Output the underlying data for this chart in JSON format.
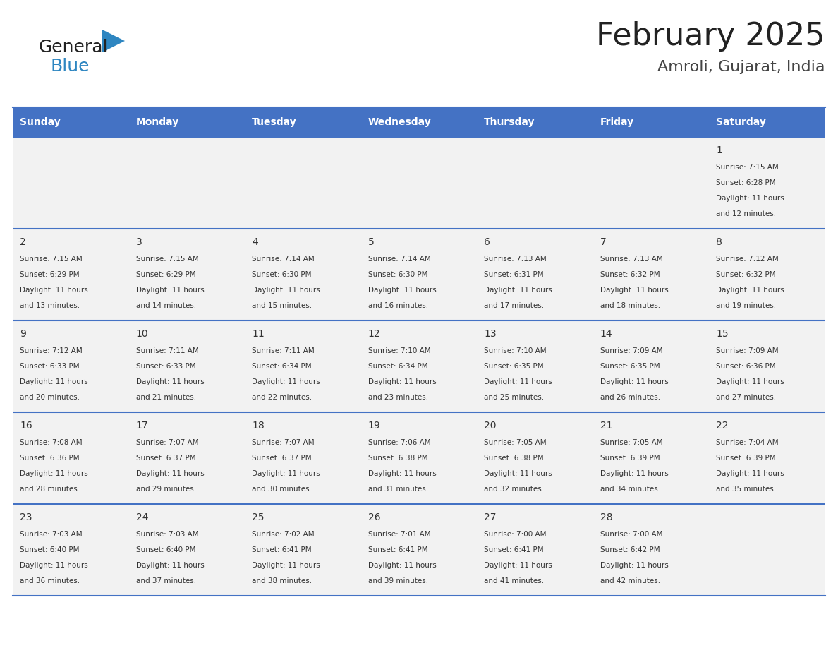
{
  "title": "February 2025",
  "subtitle": "Amroli, Gujarat, India",
  "days_of_week": [
    "Sunday",
    "Monday",
    "Tuesday",
    "Wednesday",
    "Thursday",
    "Friday",
    "Saturday"
  ],
  "header_bg": "#4472C4",
  "header_text": "#FFFFFF",
  "row_bg_light": "#F2F2F2",
  "row_bg_white": "#FFFFFF",
  "cell_text_color": "#333333",
  "day_num_color": "#333333",
  "border_color": "#4472C4",
  "calendar_data": [
    [
      null,
      null,
      null,
      null,
      null,
      null,
      {
        "day": 1,
        "sunrise": "7:15 AM",
        "sunset": "6:28 PM",
        "daylight": "11 hours and 12 minutes."
      }
    ],
    [
      {
        "day": 2,
        "sunrise": "7:15 AM",
        "sunset": "6:29 PM",
        "daylight": "11 hours and 13 minutes."
      },
      {
        "day": 3,
        "sunrise": "7:15 AM",
        "sunset": "6:29 PM",
        "daylight": "11 hours and 14 minutes."
      },
      {
        "day": 4,
        "sunrise": "7:14 AM",
        "sunset": "6:30 PM",
        "daylight": "11 hours and 15 minutes."
      },
      {
        "day": 5,
        "sunrise": "7:14 AM",
        "sunset": "6:30 PM",
        "daylight": "11 hours and 16 minutes."
      },
      {
        "day": 6,
        "sunrise": "7:13 AM",
        "sunset": "6:31 PM",
        "daylight": "11 hours and 17 minutes."
      },
      {
        "day": 7,
        "sunrise": "7:13 AM",
        "sunset": "6:32 PM",
        "daylight": "11 hours and 18 minutes."
      },
      {
        "day": 8,
        "sunrise": "7:12 AM",
        "sunset": "6:32 PM",
        "daylight": "11 hours and 19 minutes."
      }
    ],
    [
      {
        "day": 9,
        "sunrise": "7:12 AM",
        "sunset": "6:33 PM",
        "daylight": "11 hours and 20 minutes."
      },
      {
        "day": 10,
        "sunrise": "7:11 AM",
        "sunset": "6:33 PM",
        "daylight": "11 hours and 21 minutes."
      },
      {
        "day": 11,
        "sunrise": "7:11 AM",
        "sunset": "6:34 PM",
        "daylight": "11 hours and 22 minutes."
      },
      {
        "day": 12,
        "sunrise": "7:10 AM",
        "sunset": "6:34 PM",
        "daylight": "11 hours and 23 minutes."
      },
      {
        "day": 13,
        "sunrise": "7:10 AM",
        "sunset": "6:35 PM",
        "daylight": "11 hours and 25 minutes."
      },
      {
        "day": 14,
        "sunrise": "7:09 AM",
        "sunset": "6:35 PM",
        "daylight": "11 hours and 26 minutes."
      },
      {
        "day": 15,
        "sunrise": "7:09 AM",
        "sunset": "6:36 PM",
        "daylight": "11 hours and 27 minutes."
      }
    ],
    [
      {
        "day": 16,
        "sunrise": "7:08 AM",
        "sunset": "6:36 PM",
        "daylight": "11 hours and 28 minutes."
      },
      {
        "day": 17,
        "sunrise": "7:07 AM",
        "sunset": "6:37 PM",
        "daylight": "11 hours and 29 minutes."
      },
      {
        "day": 18,
        "sunrise": "7:07 AM",
        "sunset": "6:37 PM",
        "daylight": "11 hours and 30 minutes."
      },
      {
        "day": 19,
        "sunrise": "7:06 AM",
        "sunset": "6:38 PM",
        "daylight": "11 hours and 31 minutes."
      },
      {
        "day": 20,
        "sunrise": "7:05 AM",
        "sunset": "6:38 PM",
        "daylight": "11 hours and 32 minutes."
      },
      {
        "day": 21,
        "sunrise": "7:05 AM",
        "sunset": "6:39 PM",
        "daylight": "11 hours and 34 minutes."
      },
      {
        "day": 22,
        "sunrise": "7:04 AM",
        "sunset": "6:39 PM",
        "daylight": "11 hours and 35 minutes."
      }
    ],
    [
      {
        "day": 23,
        "sunrise": "7:03 AM",
        "sunset": "6:40 PM",
        "daylight": "11 hours and 36 minutes."
      },
      {
        "day": 24,
        "sunrise": "7:03 AM",
        "sunset": "6:40 PM",
        "daylight": "11 hours and 37 minutes."
      },
      {
        "day": 25,
        "sunrise": "7:02 AM",
        "sunset": "6:41 PM",
        "daylight": "11 hours and 38 minutes."
      },
      {
        "day": 26,
        "sunrise": "7:01 AM",
        "sunset": "6:41 PM",
        "daylight": "11 hours and 39 minutes."
      },
      {
        "day": 27,
        "sunrise": "7:00 AM",
        "sunset": "6:41 PM",
        "daylight": "11 hours and 41 minutes."
      },
      {
        "day": 28,
        "sunrise": "7:00 AM",
        "sunset": "6:42 PM",
        "daylight": "11 hours and 42 minutes."
      },
      null
    ]
  ],
  "logo_text1": "General",
  "logo_text2": "Blue",
  "logo_text1_color": "#222222",
  "logo_text2_color": "#2E86C1",
  "logo_triangle_color": "#2E86C1"
}
